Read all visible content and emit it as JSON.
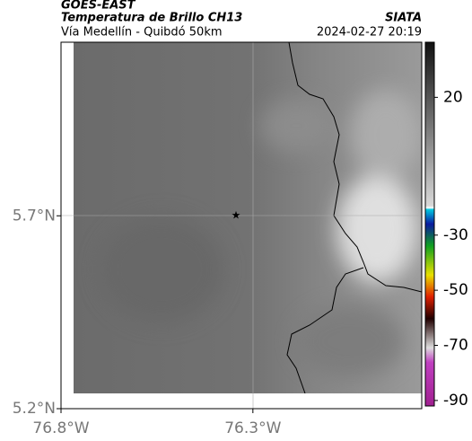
{
  "header": {
    "source": "GOES-EAST",
    "product": "Temperatura de Brillo CH13",
    "agency": "SIATA",
    "route": "Vía Medellín - Quibdó 50km",
    "timestamp": "2024-02-27 20:19"
  },
  "map": {
    "lon_range": [
      -76.8,
      -75.86
    ],
    "lat_range": [
      5.2,
      6.15
    ],
    "lat_ticks": [
      {
        "value": 5.7,
        "label": "5.7°N"
      },
      {
        "value": 5.2,
        "label": "5.2°N"
      }
    ],
    "lon_ticks": [
      {
        "value": -76.8,
        "label": "76.8°W"
      },
      {
        "value": -76.3,
        "label": "76.3°W"
      }
    ]
  },
  "colorbar": {
    "range": [
      40,
      -92
    ],
    "ticks": [
      20,
      -30,
      -50,
      -70,
      -90
    ]
  }
}
